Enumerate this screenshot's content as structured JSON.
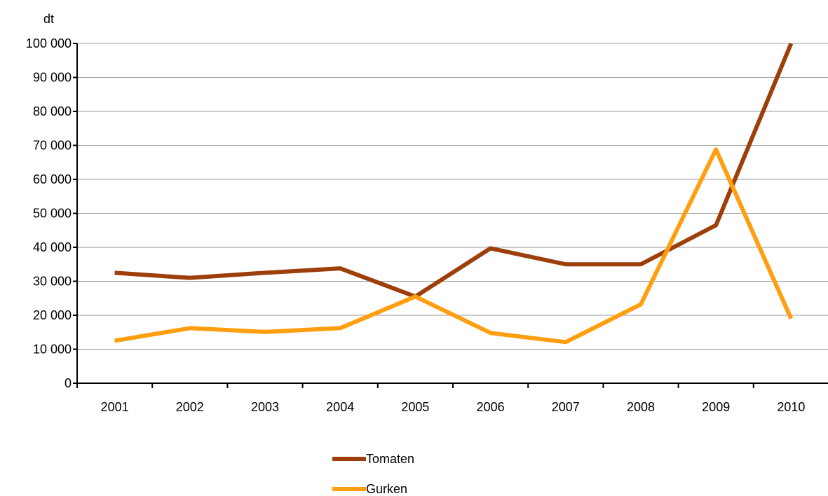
{
  "chart_data": {
    "type": "line",
    "title": "",
    "y_unit": "dt",
    "x": [
      "2001",
      "2002",
      "2003",
      "2004",
      "2005",
      "2006",
      "2007",
      "2008",
      "2009",
      "2010"
    ],
    "y_ticks": [
      "0",
      "10 000",
      "20 000",
      "30 000",
      "40 000",
      "50 000",
      "60 000",
      "70 000",
      "80 000",
      "90 000",
      "100 000"
    ],
    "ylim": [
      0,
      100000
    ],
    "grid": true,
    "legend_position": "bottom-center",
    "series": [
      {
        "name": "Tomaten",
        "color": "#9c3f0b",
        "values": [
          32500,
          31000,
          32500,
          33800,
          25500,
          39700,
          35000,
          35000,
          46500,
          100000
        ]
      },
      {
        "name": "Gurken",
        "color": "#ff9f0f",
        "values": [
          12500,
          16200,
          15100,
          16200,
          25500,
          14800,
          12100,
          23200,
          68800,
          19000
        ]
      }
    ]
  }
}
